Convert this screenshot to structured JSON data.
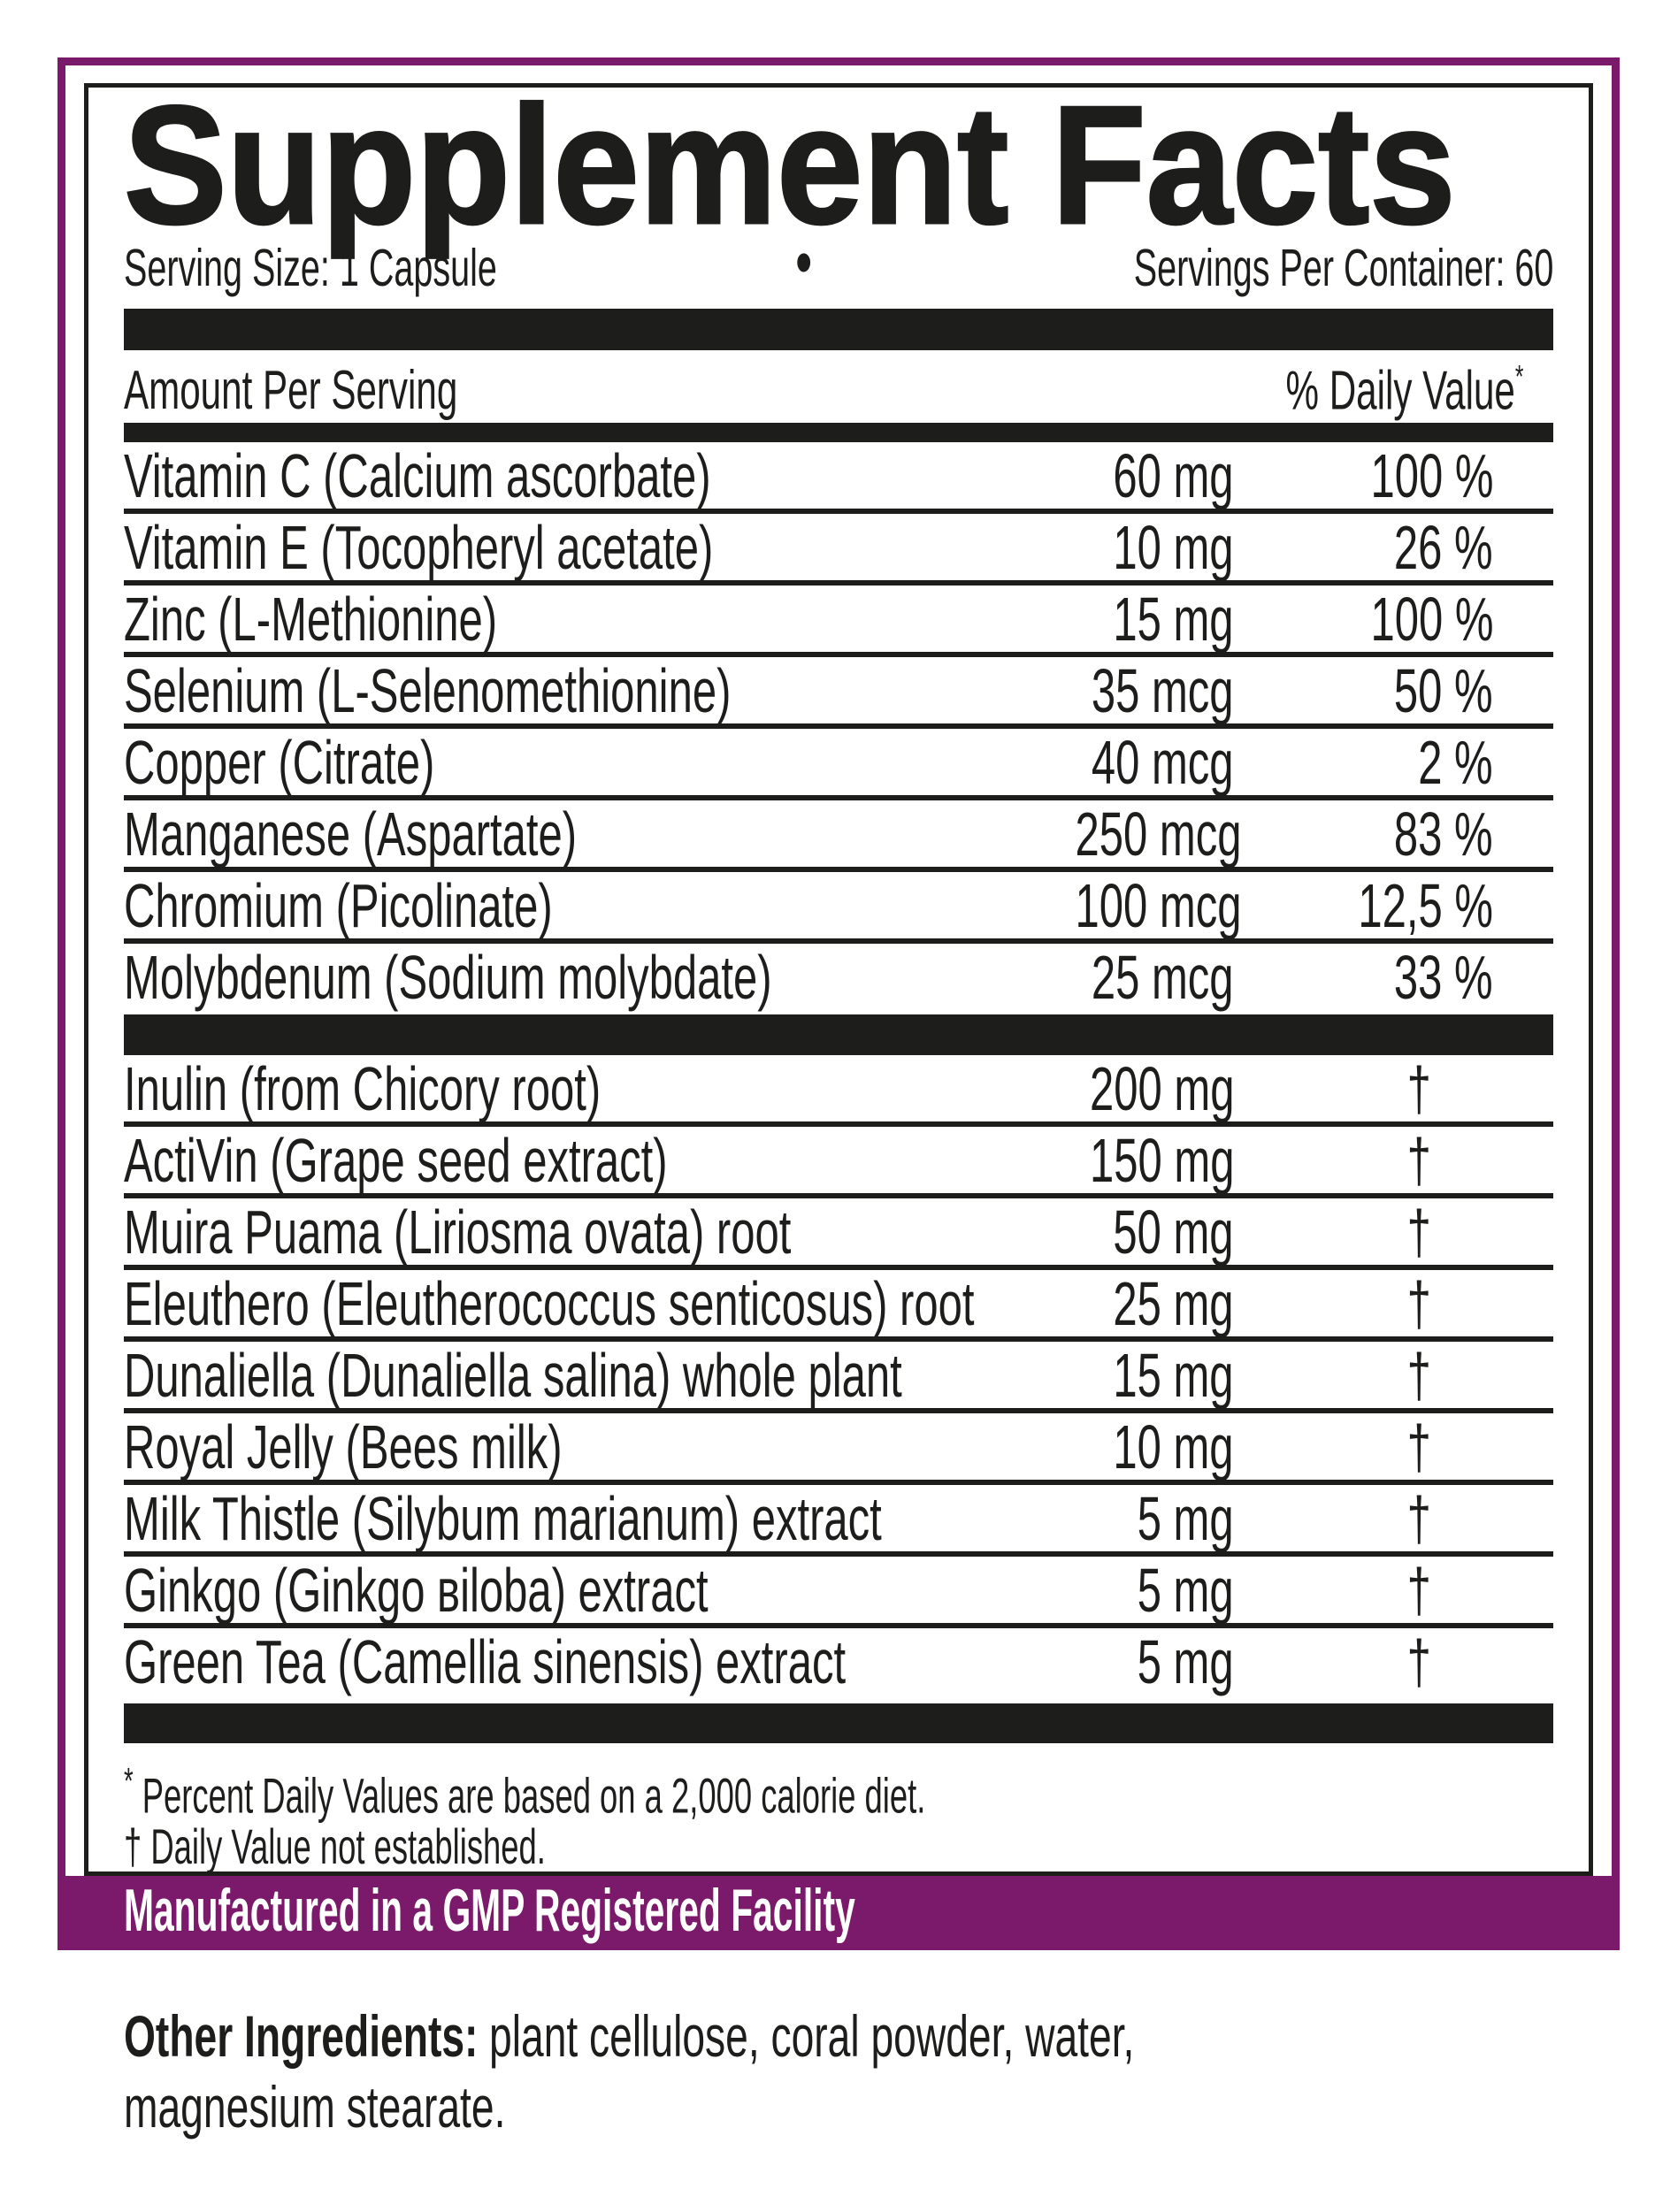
{
  "colors": {
    "purple": "#7B1A6B",
    "ink": "#1D1D1B"
  },
  "label": {
    "title": "Supplement Facts",
    "serving_size": "Serving Size: 1 Capsule",
    "separator_dot": "•",
    "servings_per_container": "Servings Per Container: 60",
    "column_headers": {
      "amount": "Amount Per Serving",
      "daily_value": "% Daily Value",
      "daily_value_mark": "*"
    },
    "sections": [
      {
        "rows": [
          {
            "name": "Vitamin C (Calcium ascorbate)",
            "amount": "60 mg",
            "dv": "100 %"
          },
          {
            "name": "Vitamin E (Tocopheryl acetate)",
            "amount": "10 mg",
            "dv": "26 %"
          },
          {
            "name": "Zinc (L-Methionine)",
            "amount": "15 mg",
            "dv": "100 %"
          },
          {
            "name": "Selenium (L-Selenomethionine)",
            "amount": "35 mcg",
            "dv": "50 %"
          },
          {
            "name": "Copper (Citrate)",
            "amount": "40 mcg",
            "dv": "2 %"
          },
          {
            "name": "Manganese (Aspartate)",
            "amount": "250 mcg",
            "dv": "83 %"
          },
          {
            "name": "Chromium (Picolinate)",
            "amount": "100 mcg",
            "dv": "12,5 %"
          },
          {
            "name": "Molybdenum (Sodium molybdate)",
            "amount": "25 mcg",
            "dv": "33 %"
          }
        ]
      },
      {
        "rows": [
          {
            "name": "Inulin (from Chicory root)",
            "amount": "200 mg",
            "dv": "†"
          },
          {
            "name": "ActiVin (Grape seed extract)",
            "amount": "150 mg",
            "dv": "†"
          },
          {
            "name": "Muira Puama (Liriosma ovata) root",
            "amount": "50 mg",
            "dv": "†"
          },
          {
            "name": "Eleuthero (Eleutherococcus senticosus) root",
            "amount": "25 mg",
            "dv": "†"
          },
          {
            "name": "Dunaliella (Dunaliella salina) whole plant",
            "amount": "15 mg",
            "dv": "†"
          },
          {
            "name": "Royal Jelly (Bees milk)",
            "amount": "10 mg",
            "dv": "†"
          },
          {
            "name": "Milk Thistle (Silybum marianum) extract",
            "amount": "5 mg",
            "dv": "†"
          },
          {
            "name": "Ginkgo (Ginkgo вiloba) extract",
            "amount": "5 mg",
            "dv": "†"
          },
          {
            "name": "Green Tea (Camellia sinensis) extract",
            "amount": "5 mg",
            "dv": "†"
          }
        ]
      }
    ],
    "footnotes": [
      {
        "mark": "*",
        "text": "Percent Daily Values are based on a 2,000 calorie diet."
      },
      {
        "mark": "†",
        "text": "Daily Value not established."
      }
    ],
    "banner": "Manufactured in a GMP Registered Facility",
    "other_ingredients": {
      "label": "Other Ingredients:",
      "line1": "plant cellulose, coral powder, water,",
      "line2": "magnesium stearate."
    }
  }
}
